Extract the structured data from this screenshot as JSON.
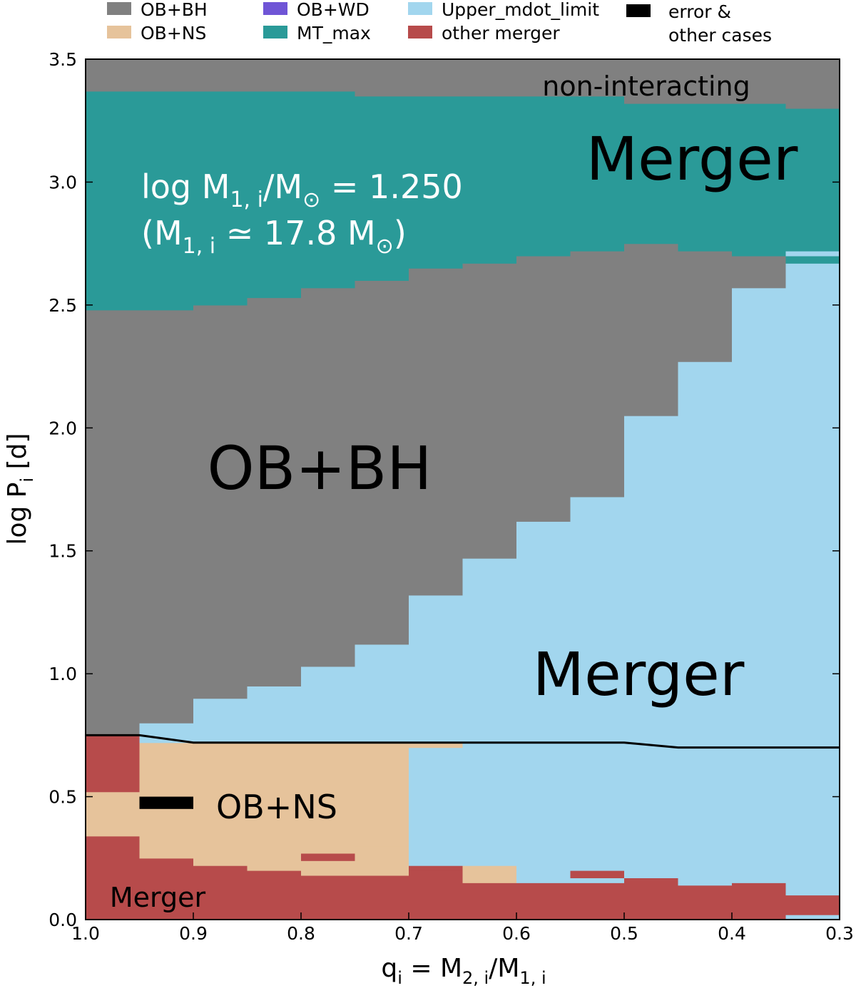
{
  "chart_data": {
    "type": "heatmap",
    "xlabel": "q_i = M_{2,i}/M_{1,i}",
    "ylabel": "log P_i [d]",
    "xlim": [
      1.0,
      0.3
    ],
    "ylim": [
      0.0,
      3.5
    ],
    "x_ticks": [
      "1.0",
      "0.9",
      "0.8",
      "0.7",
      "0.6",
      "0.5",
      "0.4",
      "0.3"
    ],
    "y_ticks": [
      "0.0",
      "0.5",
      "1.0",
      "1.5",
      "2.0",
      "2.5",
      "3.0",
      "3.5"
    ],
    "grid": false,
    "colors": {
      "OB+BH": "#808080",
      "OB+NS": "#e6c39b",
      "OB+WD": "#6f55d6",
      "MT_max": "#2a9a98",
      "Upper_mdot_limit": "#a2d6ee",
      "other merger": "#b74b4b",
      "error & other cases": "#000000"
    },
    "legend": [
      {
        "label": "OB+BH",
        "color": "#808080"
      },
      {
        "label": "OB+NS",
        "color": "#e6c39b"
      },
      {
        "label": "OB+WD",
        "color": "#6f55d6"
      },
      {
        "label": "MT_max",
        "color": "#2a9a98"
      },
      {
        "label": "Upper_mdot_limit",
        "color": "#a2d6ee"
      },
      {
        "label": "other merger",
        "color": "#b74b4b"
      },
      {
        "label": "error &",
        "color": "#000000"
      },
      {
        "label": "other cases",
        "color": ""
      }
    ],
    "legend_placement": "top",
    "columns": [
      {
        "q": [
          1.0,
          0.95
        ],
        "cells": [
          [
            0.0,
            0.34,
            "other merger"
          ],
          [
            0.34,
            0.52,
            "OB+NS"
          ],
          [
            0.52,
            0.75,
            "other merger"
          ],
          [
            0.75,
            2.48,
            "OB+BH"
          ],
          [
            2.48,
            3.37,
            "MT_max"
          ],
          [
            3.37,
            3.5,
            "OB+BH"
          ]
        ]
      },
      {
        "q": [
          0.95,
          0.9
        ],
        "cells": [
          [
            0.0,
            0.25,
            "other merger"
          ],
          [
            0.25,
            0.72,
            "OB+NS"
          ],
          [
            0.72,
            0.8,
            "Upper_mdot_limit"
          ],
          [
            0.8,
            2.48,
            "OB+BH"
          ],
          [
            2.48,
            3.37,
            "MT_max"
          ],
          [
            3.37,
            3.5,
            "OB+BH"
          ]
        ]
      },
      {
        "q": [
          0.9,
          0.85
        ],
        "cells": [
          [
            0.0,
            0.22,
            "other merger"
          ],
          [
            0.22,
            0.72,
            "OB+NS"
          ],
          [
            0.72,
            0.9,
            "Upper_mdot_limit"
          ],
          [
            0.9,
            2.5,
            "OB+BH"
          ],
          [
            2.5,
            3.37,
            "MT_max"
          ],
          [
            3.37,
            3.5,
            "OB+BH"
          ]
        ]
      },
      {
        "q": [
          0.85,
          0.8
        ],
        "cells": [
          [
            0.0,
            0.2,
            "other merger"
          ],
          [
            0.2,
            0.72,
            "OB+NS"
          ],
          [
            0.72,
            0.95,
            "Upper_mdot_limit"
          ],
          [
            0.95,
            2.53,
            "OB+BH"
          ],
          [
            2.53,
            3.37,
            "MT_max"
          ],
          [
            3.37,
            3.5,
            "OB+BH"
          ]
        ]
      },
      {
        "q": [
          0.8,
          0.75
        ],
        "cells": [
          [
            0.0,
            0.18,
            "other merger"
          ],
          [
            0.18,
            0.24,
            "OB+NS"
          ],
          [
            0.24,
            0.27,
            "other merger"
          ],
          [
            0.27,
            0.72,
            "OB+NS"
          ],
          [
            0.72,
            1.03,
            "Upper_mdot_limit"
          ],
          [
            1.03,
            2.57,
            "OB+BH"
          ],
          [
            2.57,
            3.37,
            "MT_max"
          ],
          [
            3.37,
            3.5,
            "OB+BH"
          ]
        ]
      },
      {
        "q": [
          0.75,
          0.7
        ],
        "cells": [
          [
            0.0,
            0.18,
            "other merger"
          ],
          [
            0.18,
            0.3,
            "OB+NS"
          ],
          [
            0.3,
            0.72,
            "OB+NS"
          ],
          [
            0.72,
            1.12,
            "Upper_mdot_limit"
          ],
          [
            1.12,
            2.6,
            "OB+BH"
          ],
          [
            2.6,
            3.35,
            "MT_max"
          ],
          [
            3.35,
            3.5,
            "OB+BH"
          ]
        ]
      },
      {
        "q": [
          0.7,
          0.65
        ],
        "cells": [
          [
            0.0,
            0.2,
            "other merger"
          ],
          [
            0.2,
            0.22,
            "other merger"
          ],
          [
            0.22,
            0.7,
            "Upper_mdot_limit"
          ],
          [
            0.7,
            0.72,
            "OB+NS"
          ],
          [
            0.72,
            1.32,
            "Upper_mdot_limit"
          ],
          [
            1.32,
            2.65,
            "OB+BH"
          ],
          [
            2.65,
            3.35,
            "MT_max"
          ],
          [
            3.35,
            3.5,
            "OB+BH"
          ]
        ]
      },
      {
        "q": [
          0.65,
          0.6
        ],
        "cells": [
          [
            0.0,
            0.15,
            "other merger"
          ],
          [
            0.15,
            0.22,
            "OB+NS"
          ],
          [
            0.22,
            1.47,
            "Upper_mdot_limit"
          ],
          [
            1.47,
            2.67,
            "OB+BH"
          ],
          [
            2.67,
            3.35,
            "MT_max"
          ],
          [
            3.35,
            3.5,
            "OB+BH"
          ]
        ]
      },
      {
        "q": [
          0.6,
          0.55
        ],
        "cells": [
          [
            0.0,
            0.15,
            "other merger"
          ],
          [
            0.15,
            0.2,
            "Upper_mdot_limit"
          ],
          [
            0.2,
            1.62,
            "Upper_mdot_limit"
          ],
          [
            1.62,
            2.7,
            "OB+BH"
          ],
          [
            2.7,
            3.35,
            "MT_max"
          ],
          [
            3.35,
            3.5,
            "OB+BH"
          ]
        ]
      },
      {
        "q": [
          0.55,
          0.5
        ],
        "cells": [
          [
            0.0,
            0.15,
            "other merger"
          ],
          [
            0.15,
            0.17,
            "Upper_mdot_limit"
          ],
          [
            0.17,
            0.2,
            "other merger"
          ],
          [
            0.2,
            1.72,
            "Upper_mdot_limit"
          ],
          [
            1.72,
            2.72,
            "OB+BH"
          ],
          [
            2.72,
            3.35,
            "MT_max"
          ],
          [
            3.35,
            3.5,
            "OB+BH"
          ]
        ]
      },
      {
        "q": [
          0.5,
          0.45
        ],
        "cells": [
          [
            0.0,
            0.17,
            "other merger"
          ],
          [
            0.17,
            2.05,
            "Upper_mdot_limit"
          ],
          [
            2.05,
            2.75,
            "OB+BH"
          ],
          [
            2.75,
            3.32,
            "MT_max"
          ],
          [
            3.32,
            3.5,
            "OB+BH"
          ]
        ]
      },
      {
        "q": [
          0.45,
          0.4
        ],
        "cells": [
          [
            0.0,
            0.14,
            "other merger"
          ],
          [
            0.14,
            2.27,
            "Upper_mdot_limit"
          ],
          [
            2.27,
            2.72,
            "OB+BH"
          ],
          [
            2.72,
            3.32,
            "MT_max"
          ],
          [
            3.32,
            3.5,
            "OB+BH"
          ]
        ]
      },
      {
        "q": [
          0.4,
          0.35
        ],
        "cells": [
          [
            0.0,
            0.15,
            "other merger"
          ],
          [
            0.15,
            2.57,
            "Upper_mdot_limit"
          ],
          [
            2.57,
            2.7,
            "OB+BH"
          ],
          [
            2.7,
            3.32,
            "MT_max"
          ],
          [
            3.32,
            3.5,
            "OB+BH"
          ]
        ]
      },
      {
        "q": [
          0.35,
          0.3
        ],
        "cells": [
          [
            0.0,
            0.02,
            "Upper_mdot_limit"
          ],
          [
            0.02,
            0.1,
            "other merger"
          ],
          [
            0.1,
            2.67,
            "Upper_mdot_limit"
          ],
          [
            2.67,
            2.7,
            "MT_max"
          ],
          [
            2.7,
            2.72,
            "Upper_mdot_limit"
          ],
          [
            2.72,
            3.3,
            "MT_max"
          ],
          [
            3.3,
            3.5,
            "OB+BH"
          ]
        ]
      }
    ],
    "boundary_line": {
      "q": [
        1.0,
        0.95,
        0.9,
        0.5,
        0.45,
        0.3
      ],
      "logP": [
        0.75,
        0.75,
        0.72,
        0.72,
        0.7,
        0.7
      ]
    },
    "error_marks": [
      {
        "q": [
          0.95,
          0.9
        ],
        "logP": [
          0.45,
          0.5
        ]
      }
    ],
    "annotations": {
      "non_interacting": "non-interacting",
      "merger_top": "Merger",
      "ob_bh": "OB+BH",
      "merger_mid": "Merger",
      "ob_ns": "OB+NS",
      "merger_bottom": "Merger"
    }
  }
}
